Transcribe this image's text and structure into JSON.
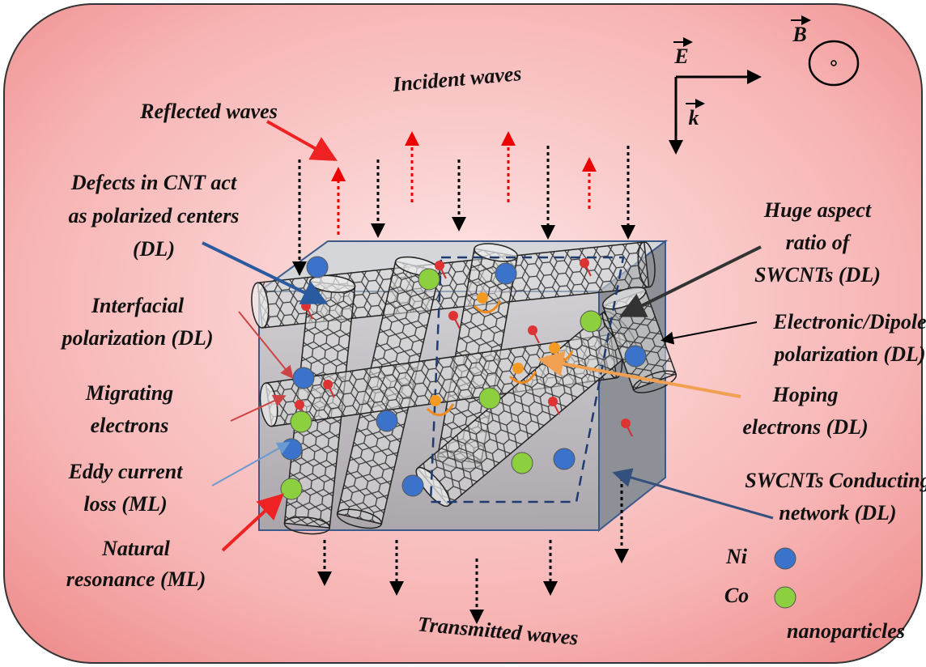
{
  "waves": {
    "incident": "Incident waves",
    "reflected": "Reflected waves",
    "transmitted": "Transmitted waves"
  },
  "vectors": {
    "E": "E",
    "B": "B",
    "k": "k"
  },
  "labels": {
    "defects": [
      "Defects in CNT act",
      "as polarized centers",
      "(DL)"
    ],
    "interfacial": [
      "Interfacial",
      "polarization (DL)"
    ],
    "migrating": [
      "Migrating",
      "electrons"
    ],
    "eddy": [
      "Eddy current",
      "loss (ML)"
    ],
    "natural": [
      "Natural",
      "resonance (ML)"
    ],
    "aspect": [
      "Huge aspect",
      "ratio of",
      "SWCNTs (DL)"
    ],
    "dipole": [
      "Electronic/Dipole",
      "polarization (DL)"
    ],
    "hoping": [
      "Hoping",
      "electrons (DL)"
    ],
    "network": [
      "SWCNTs Conducting",
      "network (DL)"
    ]
  },
  "legend": {
    "ni": "Ni",
    "co": "Co",
    "note": "nanoparticles"
  }
}
